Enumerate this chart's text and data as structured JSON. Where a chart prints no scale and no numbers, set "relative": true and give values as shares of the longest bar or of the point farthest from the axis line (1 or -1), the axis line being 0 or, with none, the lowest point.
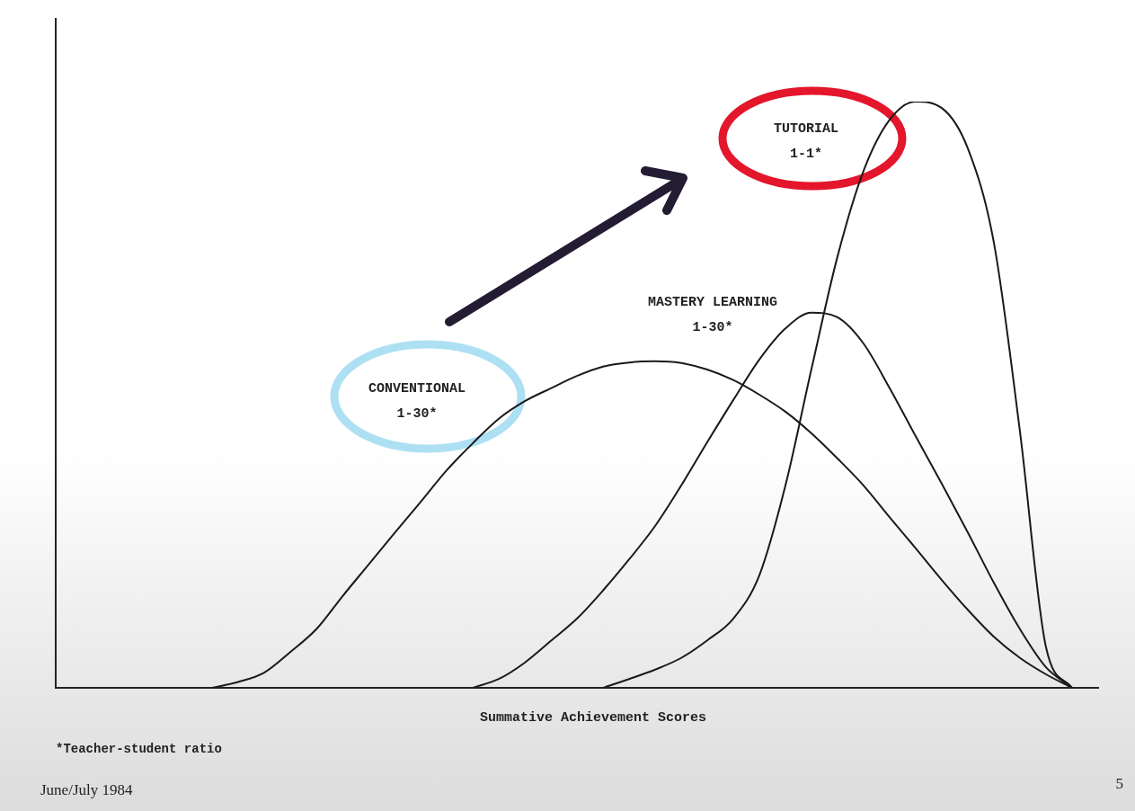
{
  "chart_data": {
    "type": "line",
    "relative": true,
    "xlabel": "Summative Achievement Scores",
    "categories": [
      null,
      null,
      null,
      null,
      null,
      null,
      null,
      null,
      null,
      null,
      null,
      null,
      null,
      null,
      null,
      null,
      null,
      null,
      null,
      null,
      null,
      null,
      null,
      null,
      null,
      null,
      null,
      null,
      null,
      null,
      null,
      null,
      null,
      null,
      null,
      null,
      null,
      null,
      null,
      null,
      null
    ],
    "series": [
      {
        "name": "CONVENTIONAL 1-30*",
        "color": "#1a1a1a",
        "values": [
          null,
          null,
          null,
          null,
          null,
          null,
          0,
          0.01,
          0.026,
          0.061,
          0.1,
          0.156,
          0.21,
          0.264,
          0.317,
          0.371,
          0.417,
          0.459,
          0.489,
          0.511,
          0.532,
          0.548,
          0.555,
          0.557,
          0.554,
          0.543,
          0.525,
          0.5,
          0.471,
          0.434,
          0.391,
          0.345,
          0.291,
          0.238,
          0.184,
          0.133,
          0.087,
          0.051,
          0.023,
          0,
          null
        ]
      },
      {
        "name": "MASTERY LEARNING 1-30*",
        "color": "#1a1a1a",
        "values": [
          null,
          null,
          null,
          null,
          null,
          null,
          null,
          null,
          null,
          null,
          null,
          null,
          null,
          null,
          null,
          null,
          0,
          0.015,
          0.043,
          0.08,
          0.118,
          0.166,
          0.219,
          0.276,
          0.345,
          0.419,
          0.491,
          0.56,
          0.613,
          0.64,
          0.632,
          0.587,
          0.511,
          0.429,
          0.348,
          0.265,
          0.179,
          0.1,
          0.035,
          0,
          null
        ]
      },
      {
        "name": "TUTORIAL 1-1*",
        "color": "#1a1a1a",
        "values": [
          null,
          null,
          null,
          null,
          null,
          null,
          null,
          null,
          null,
          null,
          null,
          null,
          null,
          null,
          null,
          null,
          null,
          null,
          null,
          null,
          null,
          0,
          0.015,
          0.031,
          0.051,
          0.081,
          0.118,
          0.192,
          0.345,
          0.544,
          0.736,
          0.882,
          0.969,
          1,
          0.989,
          0.92,
          0.759,
          0.437,
          0.069,
          0,
          null
        ]
      }
    ],
    "annotations": [
      "*Teacher-student ratio",
      "June/July 1984",
      "5"
    ],
    "legend": false,
    "grid": false,
    "marker": "none",
    "line_style": "solid"
  }
}
